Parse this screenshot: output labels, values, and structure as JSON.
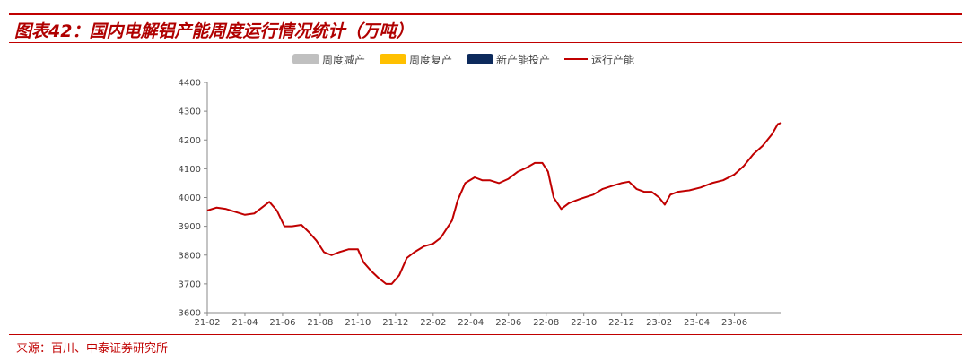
{
  "header": {
    "title": "图表42：国内电解铝产能周度运行情况统计（万吨）",
    "source": "来源：百川、中泰证券研究所"
  },
  "colors": {
    "accent": "#c00000",
    "weekly_cut": "#c0c0c0",
    "weekly_resume": "#ffc000",
    "new_capacity": "#0d2a5c",
    "operating": "#c00000"
  },
  "chart_data": {
    "type": "line",
    "title": "国内电解铝产能周度运行情况统计（万吨）",
    "ylim": [
      3600,
      4400
    ],
    "yticks": [
      3600,
      3700,
      3800,
      3900,
      4000,
      4100,
      4200,
      4300,
      4400
    ],
    "xlim": [
      0,
      30.5
    ],
    "xticks": [
      {
        "x": 0,
        "label": "21-02"
      },
      {
        "x": 2,
        "label": "21-04"
      },
      {
        "x": 4,
        "label": "21-06"
      },
      {
        "x": 6,
        "label": "21-08"
      },
      {
        "x": 8,
        "label": "21-10"
      },
      {
        "x": 10,
        "label": "21-12"
      },
      {
        "x": 12,
        "label": "22-02"
      },
      {
        "x": 14,
        "label": "22-04"
      },
      {
        "x": 16,
        "label": "22-06"
      },
      {
        "x": 18,
        "label": "22-08"
      },
      {
        "x": 20,
        "label": "22-10"
      },
      {
        "x": 22,
        "label": "22-12"
      },
      {
        "x": 24,
        "label": "23-02"
      },
      {
        "x": 26,
        "label": "23-04"
      },
      {
        "x": 28,
        "label": "23-06"
      }
    ],
    "grid": false,
    "legend_position": "top",
    "series": [
      {
        "name": "周度减产",
        "kind": "bars"
      },
      {
        "name": "周度复产",
        "kind": "bars"
      },
      {
        "name": "新产能投产",
        "kind": "bars"
      },
      {
        "name": "运行产能",
        "kind": "line",
        "x": [
          0,
          0.5,
          1,
          1.5,
          2,
          2.5,
          2.9,
          3.3,
          3.7,
          4.1,
          4.5,
          5,
          5.4,
          5.8,
          6.2,
          6.6,
          7,
          7.5,
          8,
          8.3,
          8.7,
          9.1,
          9.5,
          9.8,
          10.2,
          10.6,
          11,
          11.5,
          12,
          12.4,
          12.7,
          13,
          13.3,
          13.7,
          14.2,
          14.6,
          15,
          15.5,
          16,
          16.5,
          17,
          17.4,
          17.8,
          18.1,
          18.4,
          18.8,
          19.2,
          19.8,
          20.5,
          21,
          21.5,
          22,
          22.4,
          22.8,
          23.2,
          23.6,
          24,
          24.3,
          24.6,
          25,
          25.6,
          26.2,
          26.8,
          27.4,
          28,
          28.5,
          29,
          29.5,
          30,
          30.3,
          30.5
        ],
        "y": [
          3955,
          3965,
          3960,
          3950,
          3940,
          3945,
          3965,
          3985,
          3955,
          3900,
          3900,
          3905,
          3880,
          3850,
          3810,
          3800,
          3810,
          3820,
          3820,
          3775,
          3745,
          3720,
          3700,
          3700,
          3730,
          3790,
          3810,
          3830,
          3840,
          3860,
          3890,
          3920,
          3990,
          4050,
          4070,
          4060,
          4060,
          4050,
          4065,
          4090,
          4105,
          4120,
          4120,
          4090,
          4000,
          3960,
          3980,
          3995,
          4010,
          4030,
          4040,
          4050,
          4055,
          4030,
          4020,
          4020,
          4000,
          3975,
          4010,
          4020,
          4025,
          4035,
          4050,
          4060,
          4080,
          4110,
          4150,
          4180,
          4220,
          4255,
          4260
        ]
      }
    ]
  }
}
